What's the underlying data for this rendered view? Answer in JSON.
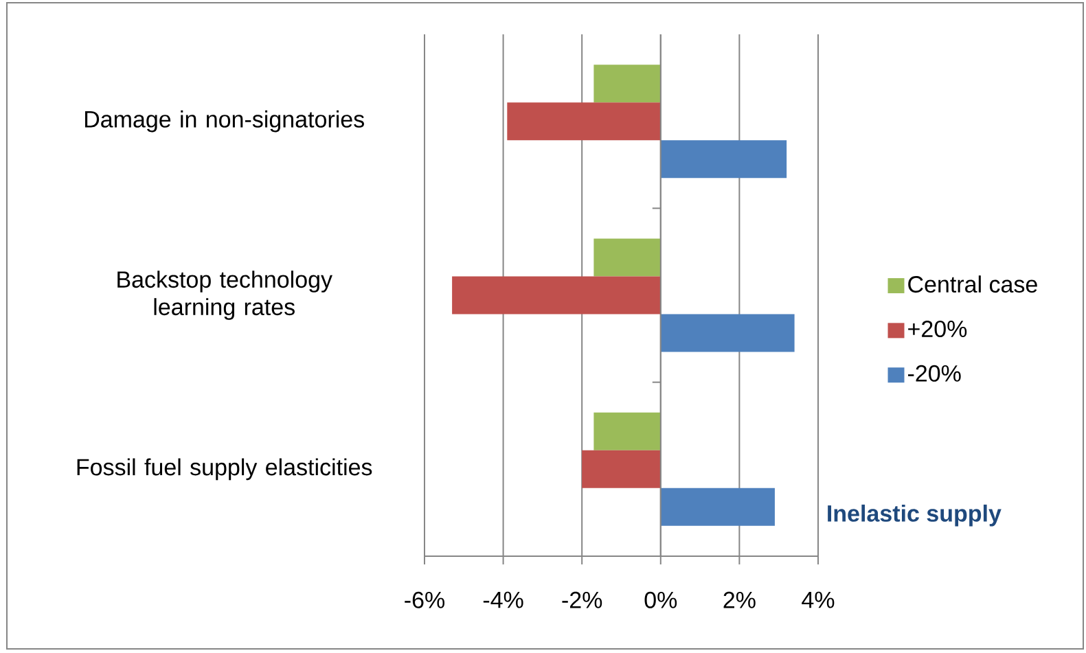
{
  "chart_data": {
    "type": "bar",
    "orientation": "horizontal",
    "categories": [
      "Damage  in non-signatories",
      "Backstop technology learning rates",
      "Fossil fuel supply  elasticities"
    ],
    "series": [
      {
        "name": "Central case",
        "color": "#9bbb59",
        "values": [
          -1.7,
          -1.7,
          -1.7
        ]
      },
      {
        "name": "+20%",
        "color": "#c0504d",
        "values": [
          -3.9,
          -5.3,
          -2.0
        ]
      },
      {
        "name": "-20%",
        "color": "#4f81bd",
        "values": [
          3.2,
          3.4,
          2.9
        ]
      }
    ],
    "xlim": [
      -6,
      4
    ],
    "xticks": [
      {
        "value": -6,
        "label": "-6%"
      },
      {
        "value": -4,
        "label": "-4%"
      },
      {
        "value": -2,
        "label": "-2%"
      },
      {
        "value": 0,
        "label": "0%"
      },
      {
        "value": 2,
        "label": "2%"
      },
      {
        "value": 4,
        "label": "4%"
      }
    ],
    "grid": "x",
    "legend": "right",
    "annotations": [
      "Inelastic supply"
    ]
  }
}
